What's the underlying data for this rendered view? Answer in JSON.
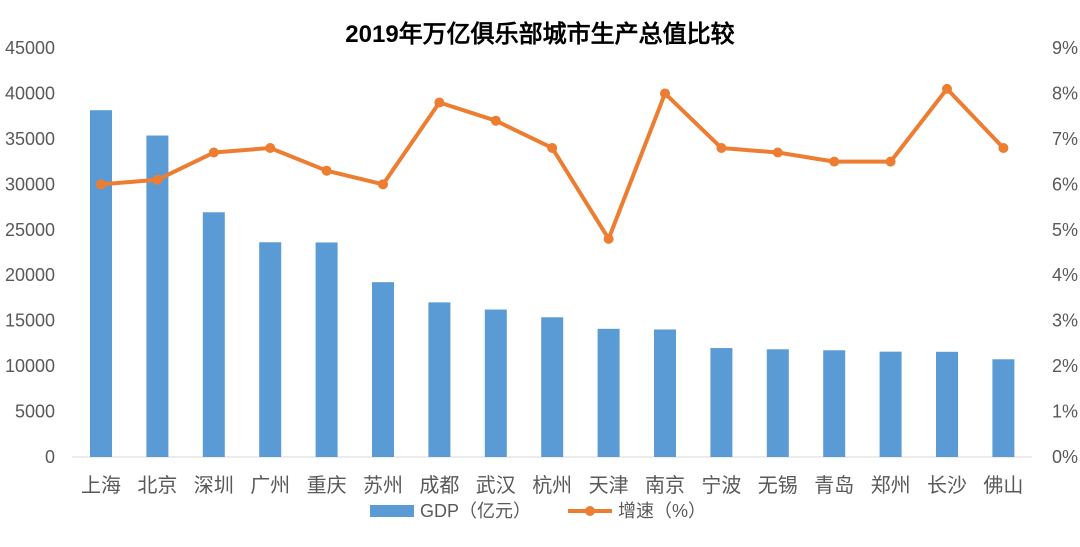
{
  "chart_data": {
    "type": "bar+line",
    "title": "2019年万亿俱乐部城市生产总值比较",
    "categories": [
      "上海",
      "北京",
      "深圳",
      "广州",
      "重庆",
      "苏州",
      "成都",
      "武汉",
      "杭州",
      "天津",
      "南京",
      "宁波",
      "无锡",
      "青岛",
      "郑州",
      "长沙",
      "佛山"
    ],
    "series": [
      {
        "name": "GDP（亿元）",
        "type": "bar",
        "axis": "left",
        "color": "#5B9BD5",
        "values": [
          38155,
          35371,
          26927,
          23628,
          23606,
          19236,
          17013,
          16223,
          15373,
          14104,
          14030,
          11985,
          11852,
          11741,
          11590,
          11574,
          10751
        ]
      },
      {
        "name": "增速（%）",
        "type": "line",
        "axis": "right",
        "color": "#ED7D31",
        "values": [
          6.0,
          6.1,
          6.7,
          6.8,
          6.3,
          6.0,
          7.8,
          7.4,
          6.8,
          4.8,
          8.0,
          6.8,
          6.7,
          6.5,
          6.5,
          8.1,
          6.8
        ]
      }
    ],
    "y_left": {
      "range": [
        0,
        45000
      ],
      "ticks": [
        "0",
        "5000",
        "10000",
        "15000",
        "20000",
        "25000",
        "30000",
        "35000",
        "40000",
        "45000"
      ]
    },
    "y_right": {
      "range": [
        0,
        9
      ],
      "ticks": [
        "0%",
        "1%",
        "2%",
        "3%",
        "4%",
        "5%",
        "6%",
        "7%",
        "8%",
        "9%"
      ]
    },
    "grid": false,
    "legend": "bottom"
  }
}
